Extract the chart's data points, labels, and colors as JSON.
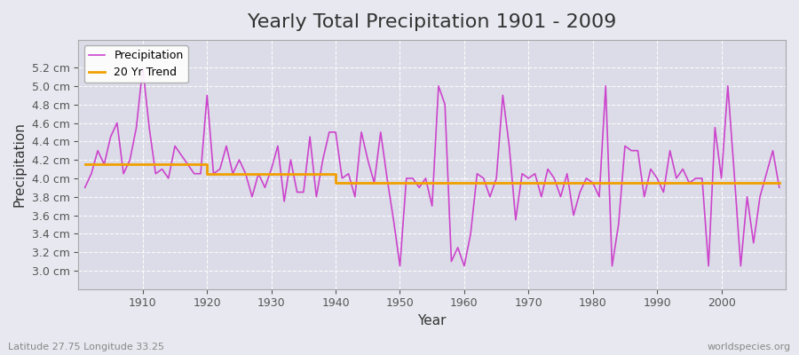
{
  "title": "Yearly Total Precipitation 1901 - 2009",
  "xlabel": "Year",
  "ylabel": "Precipitation",
  "subtitle_left": "Latitude 27.75 Longitude 33.25",
  "subtitle_right": "worldspecies.org",
  "years": [
    1901,
    1902,
    1903,
    1904,
    1905,
    1906,
    1907,
    1908,
    1909,
    1910,
    1911,
    1912,
    1913,
    1914,
    1915,
    1916,
    1917,
    1918,
    1919,
    1920,
    1921,
    1922,
    1923,
    1924,
    1925,
    1926,
    1927,
    1928,
    1929,
    1930,
    1931,
    1932,
    1933,
    1934,
    1935,
    1936,
    1937,
    1938,
    1939,
    1940,
    1941,
    1942,
    1943,
    1944,
    1945,
    1946,
    1947,
    1948,
    1949,
    1950,
    1951,
    1952,
    1953,
    1954,
    1955,
    1956,
    1957,
    1958,
    1959,
    1960,
    1961,
    1962,
    1963,
    1964,
    1965,
    1966,
    1967,
    1968,
    1969,
    1970,
    1971,
    1972,
    1973,
    1974,
    1975,
    1976,
    1977,
    1978,
    1979,
    1980,
    1981,
    1982,
    1983,
    1984,
    1985,
    1986,
    1987,
    1988,
    1989,
    1990,
    1991,
    1992,
    1993,
    1994,
    1995,
    1996,
    1997,
    1998,
    1999,
    2000,
    2001,
    2002,
    2003,
    2004,
    2005,
    2006,
    2007,
    2008,
    2009
  ],
  "precip": [
    3.9,
    4.05,
    4.3,
    4.15,
    4.45,
    4.6,
    4.05,
    4.2,
    4.55,
    5.2,
    4.55,
    4.05,
    4.1,
    4.0,
    4.35,
    4.25,
    4.15,
    4.05,
    4.05,
    4.9,
    4.05,
    4.1,
    4.35,
    4.05,
    4.2,
    4.05,
    3.8,
    4.05,
    3.9,
    4.1,
    4.35,
    3.75,
    4.2,
    3.85,
    3.85,
    4.45,
    3.8,
    4.2,
    4.5,
    4.5,
    4.0,
    4.05,
    3.8,
    4.5,
    4.2,
    3.95,
    4.5,
    4.0,
    3.55,
    3.05,
    4.0,
    4.0,
    3.9,
    4.0,
    3.7,
    5.0,
    4.8,
    3.1,
    3.25,
    3.05,
    3.4,
    4.05,
    4.0,
    3.8,
    4.0,
    4.9,
    4.35,
    3.55,
    4.05,
    4.0,
    4.05,
    3.8,
    4.1,
    4.0,
    3.8,
    4.05,
    3.6,
    3.85,
    4.0,
    3.95,
    3.8,
    5.0,
    3.05,
    3.5,
    4.35,
    4.3,
    4.3,
    3.8,
    4.1,
    4.0,
    3.85,
    4.3,
    4.0,
    4.1,
    3.95,
    4.0,
    4.0,
    3.05,
    4.55,
    4.0,
    5.0,
    4.05,
    3.05,
    3.8,
    3.3,
    3.8,
    4.05,
    4.3,
    3.9
  ],
  "trend": [
    4.15,
    4.15,
    4.15,
    4.15,
    4.15,
    4.15,
    4.15,
    4.15,
    4.15,
    4.15,
    4.15,
    4.15,
    4.15,
    4.15,
    4.15,
    4.15,
    4.15,
    4.15,
    4.15,
    4.05,
    4.05,
    4.05,
    4.05,
    4.05,
    4.05,
    4.05,
    4.05,
    4.05,
    4.05,
    4.05,
    4.05,
    4.05,
    4.05,
    4.05,
    4.05,
    4.05,
    4.05,
    4.05,
    4.05,
    3.95,
    3.95,
    3.95,
    3.95,
    3.95,
    3.95,
    3.95,
    3.95,
    3.95,
    3.95,
    3.95,
    3.95,
    3.95,
    3.95,
    3.95,
    3.95,
    3.95,
    3.95,
    3.95,
    3.95,
    3.95,
    3.95,
    3.95,
    3.95,
    3.95,
    3.95,
    3.95,
    3.95,
    3.95,
    3.95,
    3.95,
    3.95,
    3.95,
    3.95,
    3.95,
    3.95,
    3.95,
    3.95,
    3.95,
    3.95,
    3.95,
    3.95,
    3.95,
    3.95,
    3.95,
    3.95,
    3.95,
    3.95,
    3.95,
    3.95,
    3.95,
    3.95,
    3.95,
    3.95,
    3.95,
    3.95,
    3.95,
    3.95,
    3.95,
    3.95,
    3.95,
    3.95,
    3.95,
    3.95,
    3.95,
    3.95,
    3.95,
    3.95,
    3.95,
    3.95
  ],
  "precip_color": "#cc44cc",
  "trend_color": "#f0a000",
  "background_color": "#e8e8f0",
  "plot_bg_color": "#dcdce8",
  "grid_color": "#ffffff",
  "title_fontsize": 16,
  "ylim_min": 2.8,
  "ylim_max": 5.5,
  "yticks": [
    3.0,
    3.2,
    3.4,
    3.6,
    3.8,
    4.0,
    4.2,
    4.4,
    4.6,
    4.8,
    5.0,
    5.2
  ],
  "xlim_min": 1900,
  "xlim_max": 2010,
  "xticks": [
    1910,
    1920,
    1930,
    1940,
    1950,
    1960,
    1970,
    1980,
    1990,
    2000
  ],
  "legend_labels": [
    "Precipitation",
    "20 Yr Trend"
  ]
}
